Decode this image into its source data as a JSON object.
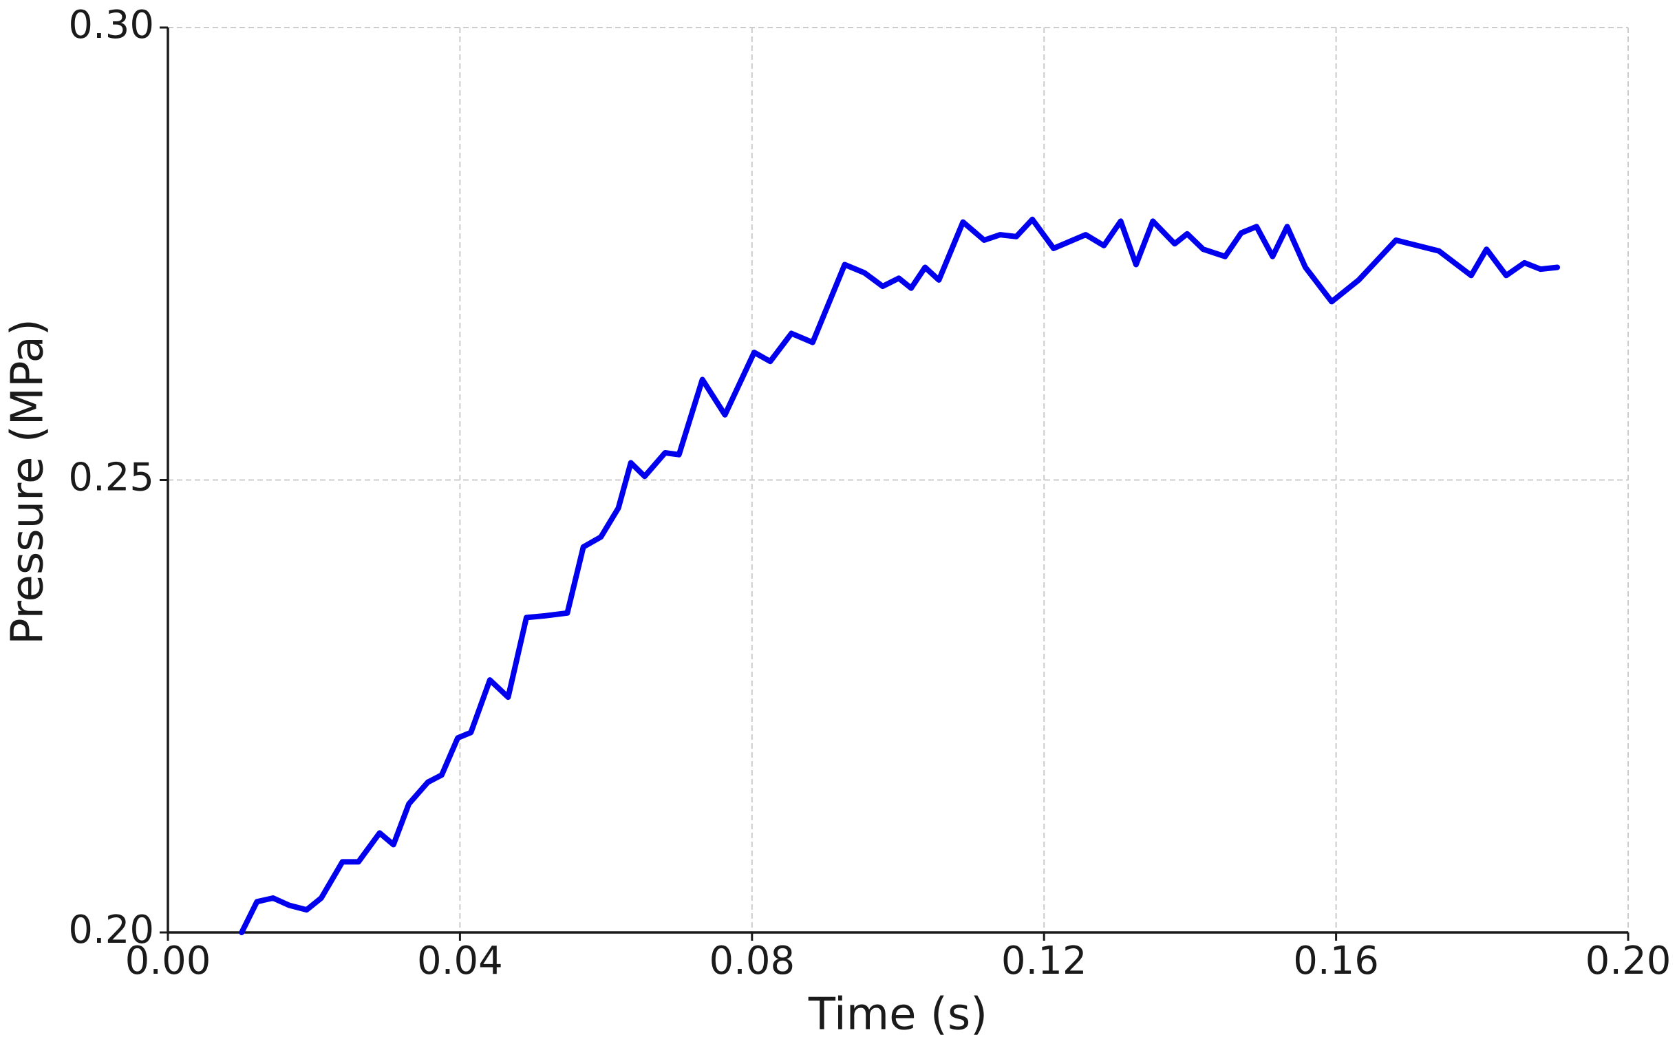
{
  "chart_data": {
    "type": "line",
    "xlabel": "Time (s)",
    "ylabel": "Pressure (MPa)",
    "color": "#0000ee",
    "grid": true,
    "xlim": [
      0,
      0.2
    ],
    "xticks": [
      {
        "value": 0,
        "label": "0.00"
      },
      0.04,
      0.08,
      0.12,
      0.16,
      {
        "value": 0.2,
        "label": "0.20"
      }
    ],
    "ylim": [
      0.2,
      0.3
    ],
    "yticks": [
      {
        "value": 0.2,
        "label": "0.20"
      },
      0.25,
      {
        "value": 0.3,
        "label": "0.30"
      }
    ],
    "x": [
      0.0101,
      0.0122,
      0.0144,
      0.0166,
      0.019,
      0.021,
      0.0239,
      0.0261,
      0.029,
      0.0309,
      0.033,
      0.0356,
      0.0375,
      0.0397,
      0.0415,
      0.0441,
      0.0466,
      0.0491,
      0.0517,
      0.0547,
      0.0569,
      0.0593,
      0.0617,
      0.0634,
      0.0653,
      0.0681,
      0.07,
      0.0732,
      0.0763,
      0.0803,
      0.0825,
      0.0854,
      0.0883,
      0.0927,
      0.0954,
      0.0979,
      0.1001,
      0.1018,
      0.1037,
      0.1056,
      0.1089,
      0.1118,
      0.114,
      0.1162,
      0.1184,
      0.1213,
      0.1257,
      0.1282,
      0.1305,
      0.1326,
      0.1349,
      0.1379,
      0.1396,
      0.1418,
      0.1448,
      0.147,
      0.1491,
      0.1513,
      0.1533,
      0.1558,
      0.1594,
      0.1631,
      0.1682,
      0.1741,
      0.1785,
      0.1806,
      0.1833,
      0.1858,
      0.188,
      0.1903
    ],
    "values": [
      0.2,
      0.2034,
      0.2038,
      0.203,
      0.2025,
      0.2038,
      0.2078,
      0.2078,
      0.211,
      0.2097,
      0.2142,
      0.2166,
      0.2174,
      0.2215,
      0.2221,
      0.2279,
      0.226,
      0.2348,
      0.235,
      0.2353,
      0.2426,
      0.2437,
      0.2469,
      0.2519,
      0.2504,
      0.253,
      0.2528,
      0.2611,
      0.2572,
      0.2641,
      0.2631,
      0.2662,
      0.2652,
      0.2738,
      0.2729,
      0.2714,
      0.2723,
      0.2712,
      0.2735,
      0.2721,
      0.2785,
      0.2765,
      0.2771,
      0.2769,
      0.2788,
      0.2756,
      0.2771,
      0.2759,
      0.2786,
      0.2738,
      0.2786,
      0.2761,
      0.2772,
      0.2755,
      0.2747,
      0.2773,
      0.278,
      0.2747,
      0.278,
      0.2735,
      0.2697,
      0.2721,
      0.2765,
      0.2753,
      0.2726,
      0.2755,
      0.2726,
      0.274,
      0.2733,
      0.2735
    ]
  }
}
